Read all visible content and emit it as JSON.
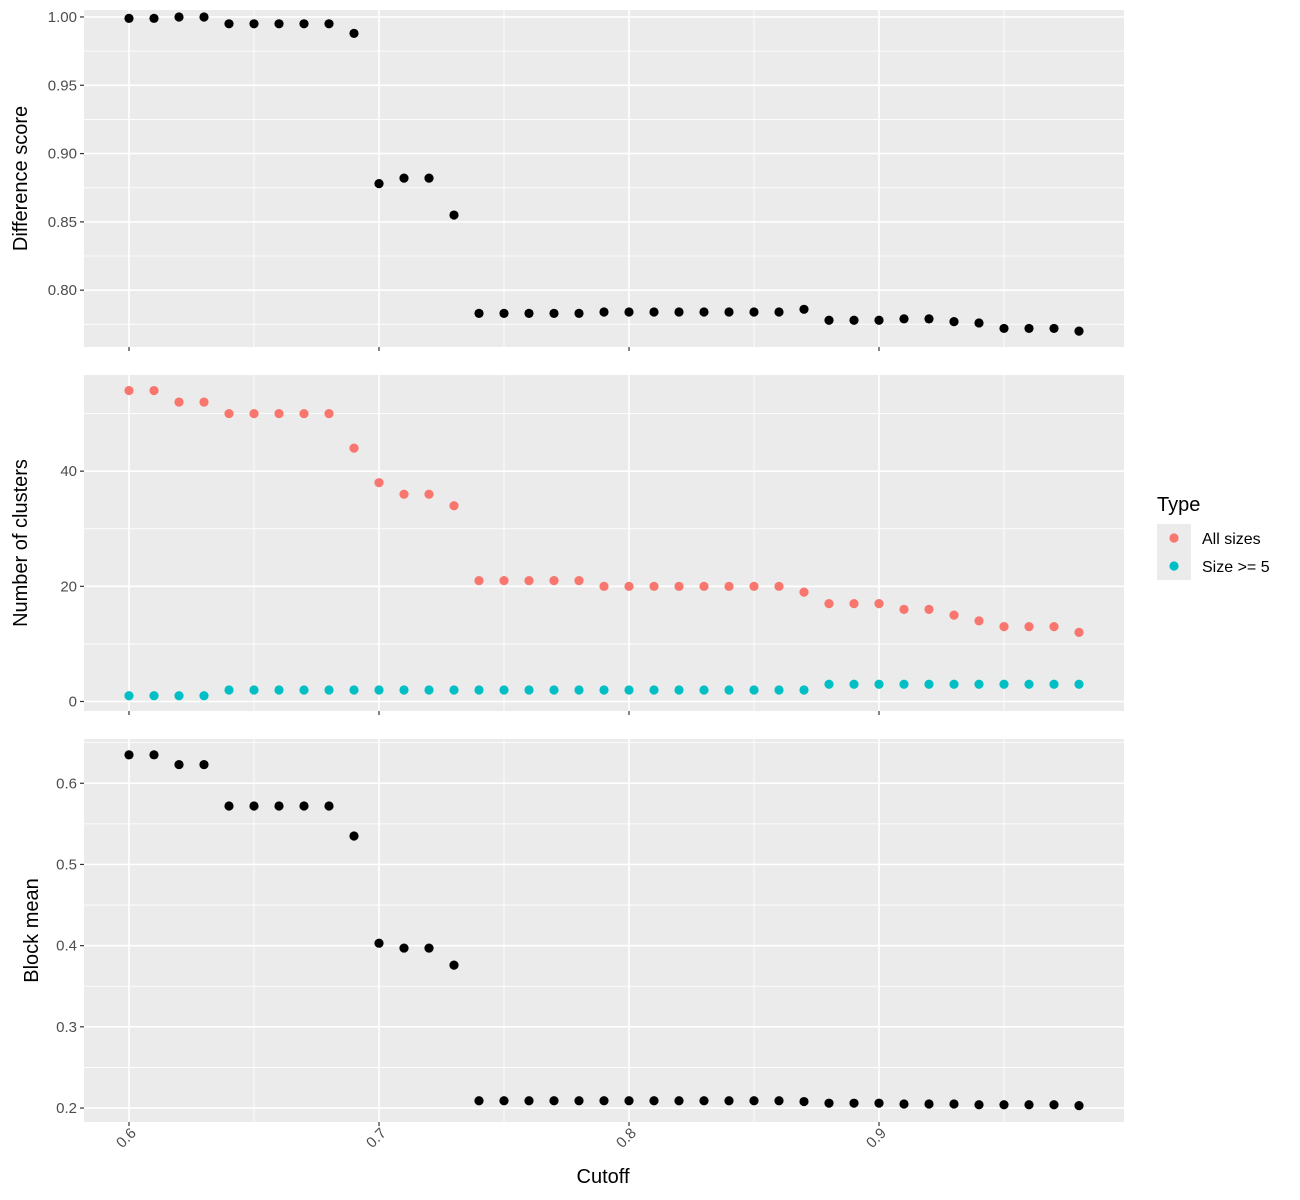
{
  "chart_data": {
    "type": "scatter",
    "xlabel": "Cutoff",
    "xlim": [
      0.582,
      0.998
    ],
    "x_ticks": [
      0.6,
      0.7,
      0.8,
      0.9
    ],
    "x_tick_labels": [
      "0.6",
      "0.7",
      "0.8",
      "0.9"
    ],
    "x": [
      0.6,
      0.61,
      0.62,
      0.63,
      0.64,
      0.65,
      0.66,
      0.67,
      0.68,
      0.69,
      0.7,
      0.71,
      0.72,
      0.73,
      0.74,
      0.75,
      0.76,
      0.77,
      0.78,
      0.79,
      0.8,
      0.81,
      0.82,
      0.83,
      0.84,
      0.85,
      0.86,
      0.87,
      0.88,
      0.89,
      0.9,
      0.91,
      0.92,
      0.93,
      0.94,
      0.95,
      0.96,
      0.97,
      0.98
    ],
    "grid": true,
    "panels": [
      {
        "ylabel": "Difference score",
        "ylim": [
          0.7584,
          1.0051
        ],
        "y_ticks": [
          0.8,
          0.85,
          0.9,
          0.95,
          1.0
        ],
        "y_tick_labels": [
          "0.80",
          "0.85",
          "0.90",
          "0.95",
          "1.00"
        ],
        "series": [
          {
            "color": "#000000",
            "values": [
              0.999,
              0.999,
              1.0,
              1.0,
              0.995,
              0.995,
              0.995,
              0.995,
              0.995,
              0.988,
              0.878,
              0.882,
              0.882,
              0.855,
              0.783,
              0.783,
              0.783,
              0.783,
              0.783,
              0.784,
              0.784,
              0.784,
              0.784,
              0.784,
              0.784,
              0.784,
              0.784,
              0.786,
              0.778,
              0.778,
              0.778,
              0.779,
              0.779,
              0.777,
              0.776,
              0.772,
              0.772,
              0.772,
              0.77
            ]
          }
        ]
      },
      {
        "ylabel": "Number of clusters",
        "ylim": [
          -1.65,
          56.7
        ],
        "y_ticks": [
          0,
          20,
          40
        ],
        "y_tick_labels": [
          "0",
          "20",
          "40"
        ],
        "series": [
          {
            "name": "All sizes",
            "color": "#f8766d",
            "values": [
              54,
              54,
              52,
              52,
              50,
              50,
              50,
              50,
              50,
              44,
              38,
              36,
              36,
              34,
              21,
              21,
              21,
              21,
              21,
              20,
              20,
              20,
              20,
              20,
              20,
              20,
              20,
              19,
              17,
              17,
              17,
              16,
              16,
              15,
              14,
              13,
              13,
              13,
              12
            ]
          },
          {
            "name": "Size >= 5",
            "color": "#00bfc4",
            "values": [
              1,
              1,
              1,
              1,
              2,
              2,
              2,
              2,
              2,
              2,
              2,
              2,
              2,
              2,
              2,
              2,
              2,
              2,
              2,
              2,
              2,
              2,
              2,
              2,
              2,
              2,
              2,
              2,
              3,
              3,
              3,
              3,
              3,
              3,
              3,
              3,
              3,
              3,
              3
            ]
          }
        ]
      },
      {
        "ylabel": "Block mean",
        "ylim": [
          0.1828,
          0.6545
        ],
        "y_ticks": [
          0.2,
          0.3,
          0.4,
          0.5,
          0.6
        ],
        "y_tick_labels": [
          "0.2",
          "0.3",
          "0.4",
          "0.5",
          "0.6"
        ],
        "series": [
          {
            "color": "#000000",
            "values": [
              0.635,
              0.635,
              0.623,
              0.623,
              0.572,
              0.572,
              0.572,
              0.572,
              0.572,
              0.535,
              0.403,
              0.397,
              0.397,
              0.376,
              0.209,
              0.209,
              0.209,
              0.209,
              0.209,
              0.209,
              0.209,
              0.209,
              0.209,
              0.209,
              0.209,
              0.209,
              0.209,
              0.208,
              0.206,
              0.206,
              0.206,
              0.205,
              0.205,
              0.205,
              0.204,
              0.204,
              0.204,
              0.204,
              0.203
            ]
          }
        ]
      }
    ],
    "legend": {
      "title": "Type",
      "placement": "right",
      "entries": [
        {
          "label": "All sizes",
          "color": "#f8766d"
        },
        {
          "label": "Size >= 5",
          "color": "#00bfc4"
        }
      ]
    }
  }
}
